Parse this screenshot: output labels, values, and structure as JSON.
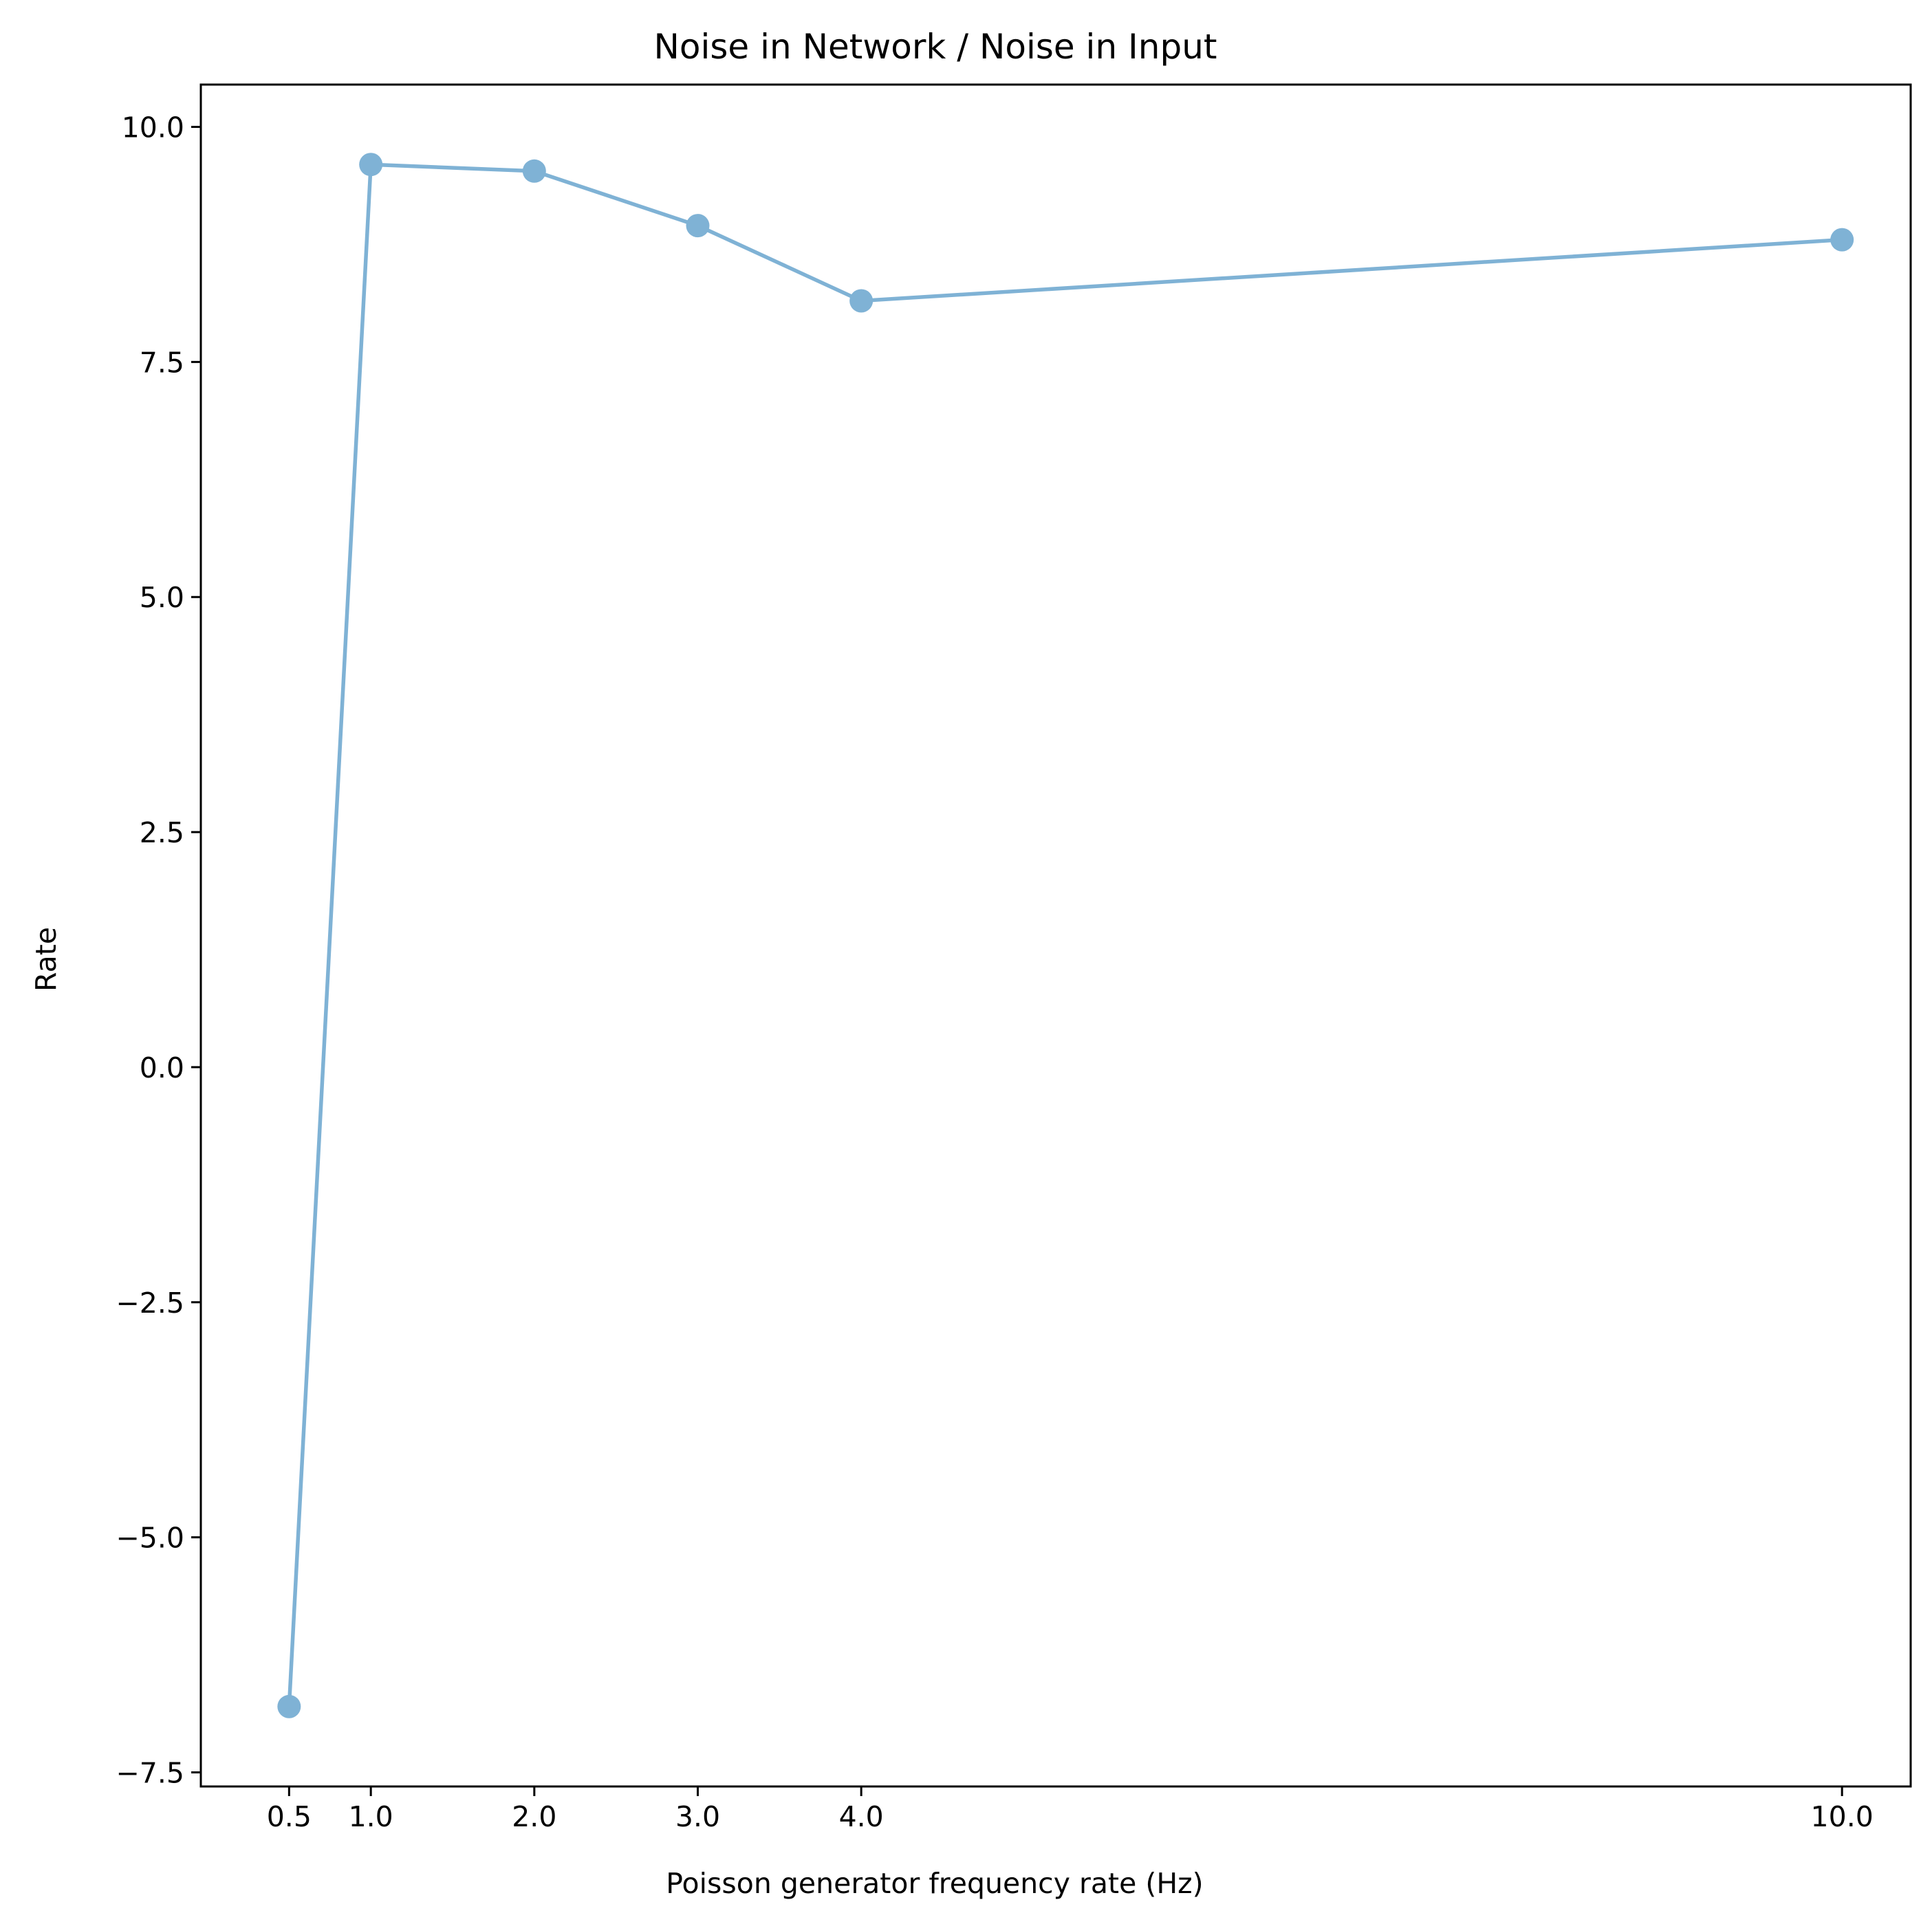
{
  "chart_data": {
    "type": "line",
    "title": "Noise in Network / Noise in Input",
    "xlabel": "Poisson generator frequency rate (Hz)",
    "ylabel": "Rate",
    "x": [
      0.5,
      1.0,
      2.0,
      3.0,
      4.0,
      10.0
    ],
    "x_tick_labels": [
      "0.5",
      "1.0",
      "2.0",
      "3.0",
      "4.0",
      "10.0"
    ],
    "y_ticks": [
      -7.5,
      -5.0,
      -2.5,
      0.0,
      2.5,
      5.0,
      7.5,
      10.0
    ],
    "y_tick_labels": [
      "−7.5",
      "−5.0",
      "−2.5",
      "0.0",
      "2.5",
      "5.0",
      "7.5",
      "10.0"
    ],
    "xlim": [
      -0.04,
      10.42
    ],
    "ylim": [
      -7.65,
      10.45
    ],
    "grid": false,
    "series": [
      {
        "values": [
          -6.8,
          9.6,
          9.53,
          8.95,
          8.15,
          8.8
        ],
        "color": "#7fb2d5",
        "marker": "circle"
      }
    ]
  }
}
